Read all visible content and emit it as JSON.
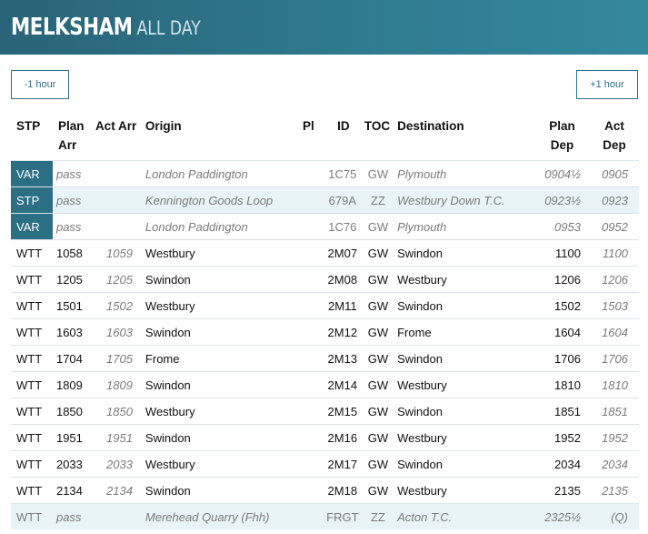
{
  "header": {
    "title": "MELKSHAM",
    "subtitle": "ALL DAY"
  },
  "nav": {
    "prev_label": "-1 hour",
    "next_label": "+1 hour"
  },
  "columns": {
    "stp": "STP",
    "plan_arr": [
      "Plan",
      "Arr"
    ],
    "act_arr": "Act Arr",
    "origin": "Origin",
    "pl": "Pl",
    "id": "ID",
    "toc": "TOC",
    "destination": "Destination",
    "plan_dep": [
      "Plan",
      "Dep"
    ],
    "act_dep": [
      "Act",
      "Dep"
    ]
  },
  "rows": [
    {
      "stp": "VAR",
      "plan_arr": "pass",
      "act_arr": "",
      "origin": "London Paddington",
      "pl": "",
      "id": "1C75",
      "toc": "GW",
      "dest": "Plymouth",
      "plan_dep": "0904½",
      "act_dep": "0905"
    },
    {
      "stp": "STP",
      "plan_arr": "pass",
      "act_arr": "",
      "origin": "Kennington Goods Loop",
      "pl": "",
      "id": "679A",
      "toc": "ZZ",
      "dest": "Westbury Down T.C.",
      "plan_dep": "0923½",
      "act_dep": "0923"
    },
    {
      "stp": "VAR",
      "plan_arr": "pass",
      "act_arr": "",
      "origin": "London Paddington",
      "pl": "",
      "id": "1C76",
      "toc": "GW",
      "dest": "Plymouth",
      "plan_dep": "0953",
      "act_dep": "0952"
    },
    {
      "stp": "WTT",
      "plan_arr": "1058",
      "act_arr": "1059",
      "origin": "Westbury",
      "pl": "",
      "id": "2M07",
      "toc": "GW",
      "dest": "Swindon",
      "plan_dep": "1100",
      "act_dep": "1100"
    },
    {
      "stp": "WTT",
      "plan_arr": "1205",
      "act_arr": "1205",
      "origin": "Swindon",
      "pl": "",
      "id": "2M08",
      "toc": "GW",
      "dest": "Westbury",
      "plan_dep": "1206",
      "act_dep": "1206"
    },
    {
      "stp": "WTT",
      "plan_arr": "1501",
      "act_arr": "1502",
      "origin": "Westbury",
      "pl": "",
      "id": "2M11",
      "toc": "GW",
      "dest": "Swindon",
      "plan_dep": "1502",
      "act_dep": "1503"
    },
    {
      "stp": "WTT",
      "plan_arr": "1603",
      "act_arr": "1603",
      "origin": "Swindon",
      "pl": "",
      "id": "2M12",
      "toc": "GW",
      "dest": "Frome",
      "plan_dep": "1604",
      "act_dep": "1604"
    },
    {
      "stp": "WTT",
      "plan_arr": "1704",
      "act_arr": "1705",
      "origin": "Frome",
      "pl": "",
      "id": "2M13",
      "toc": "GW",
      "dest": "Swindon",
      "plan_dep": "1706",
      "act_dep": "1706"
    },
    {
      "stp": "WTT",
      "plan_arr": "1809",
      "act_arr": "1809",
      "origin": "Swindon",
      "pl": "",
      "id": "2M14",
      "toc": "GW",
      "dest": "Westbury",
      "plan_dep": "1810",
      "act_dep": "1810"
    },
    {
      "stp": "WTT",
      "plan_arr": "1850",
      "act_arr": "1850",
      "origin": "Westbury",
      "pl": "",
      "id": "2M15",
      "toc": "GW",
      "dest": "Swindon",
      "plan_dep": "1851",
      "act_dep": "1851"
    },
    {
      "stp": "WTT",
      "plan_arr": "1951",
      "act_arr": "1951",
      "origin": "Swindon",
      "pl": "",
      "id": "2M16",
      "toc": "GW",
      "dest": "Westbury",
      "plan_dep": "1952",
      "act_dep": "1952"
    },
    {
      "stp": "WTT",
      "plan_arr": "2033",
      "act_arr": "2033",
      "origin": "Westbury",
      "pl": "",
      "id": "2M17",
      "toc": "GW",
      "dest": "Swindon",
      "plan_dep": "2034",
      "act_dep": "2034"
    },
    {
      "stp": "WTT",
      "plan_arr": "2134",
      "act_arr": "2134",
      "origin": "Swindon",
      "pl": "",
      "id": "2M18",
      "toc": "GW",
      "dest": "Westbury",
      "plan_dep": "2135",
      "act_dep": "2135"
    },
    {
      "stp": "WTT",
      "plan_arr": "pass",
      "act_arr": "",
      "origin": "Merehead Quarry (Fhh)",
      "pl": "",
      "id": "FRGT",
      "toc": "ZZ",
      "dest": "Acton T.C.",
      "plan_dep": "2325½",
      "act_dep": "(Q)"
    }
  ],
  "colors": {
    "header_bg": "#2f7a8f",
    "accent": "#2c6f85",
    "highlight_row": "#e8f4f8"
  }
}
